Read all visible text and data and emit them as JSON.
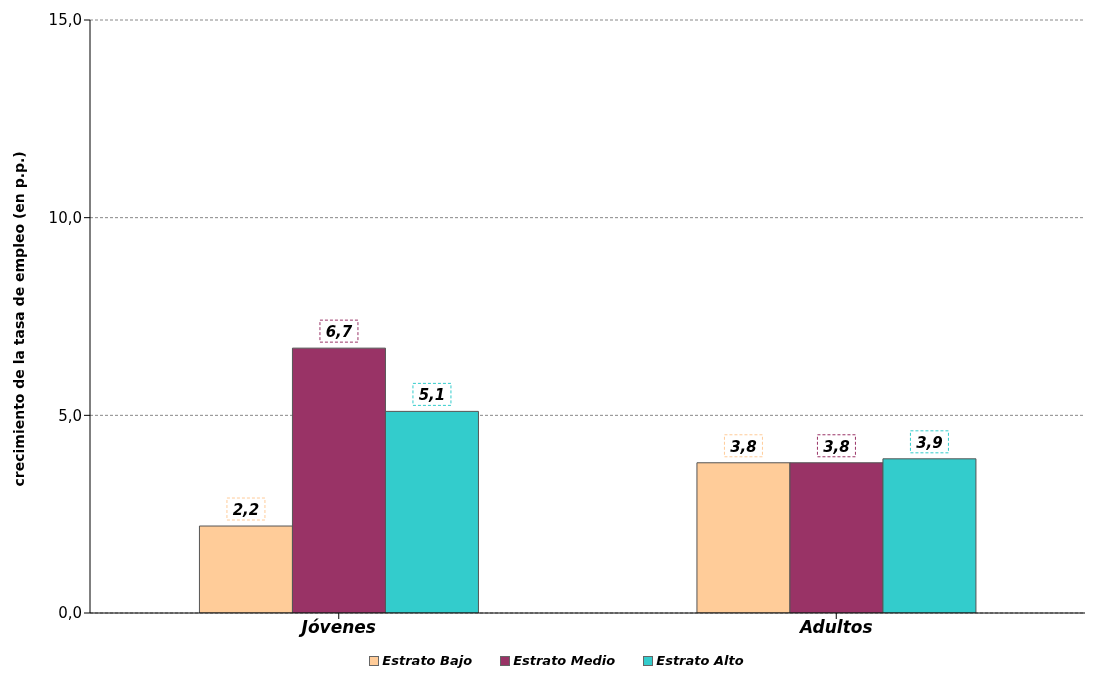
{
  "chart_data": {
    "type": "bar",
    "ylabel": "crecimiento de la tasa de empleo (en p.p.)",
    "categories": [
      "Jóvenes",
      "Adultos"
    ],
    "series": [
      {
        "name": "Estrato Bajo",
        "color": "#ffcc99",
        "values": [
          2.2,
          3.8
        ],
        "value_labels": [
          "2,2",
          "3,8"
        ]
      },
      {
        "name": "Estrato Medio",
        "color": "#993366",
        "values": [
          6.7,
          3.8
        ],
        "value_labels": [
          "6,7",
          "3,8"
        ]
      },
      {
        "name": "Estrato Alto",
        "color": "#33cccc",
        "values": [
          5.1,
          3.9
        ],
        "value_labels": [
          "5,1",
          "3,9"
        ]
      }
    ],
    "ylim": [
      0,
      15
    ],
    "yticks": [
      {
        "value": 0,
        "label": "0,0"
      },
      {
        "value": 5,
        "label": "5,0"
      },
      {
        "value": 10,
        "label": "10,0"
      },
      {
        "value": 15,
        "label": "15,0"
      }
    ],
    "grid": "y",
    "legend": "bottom"
  }
}
